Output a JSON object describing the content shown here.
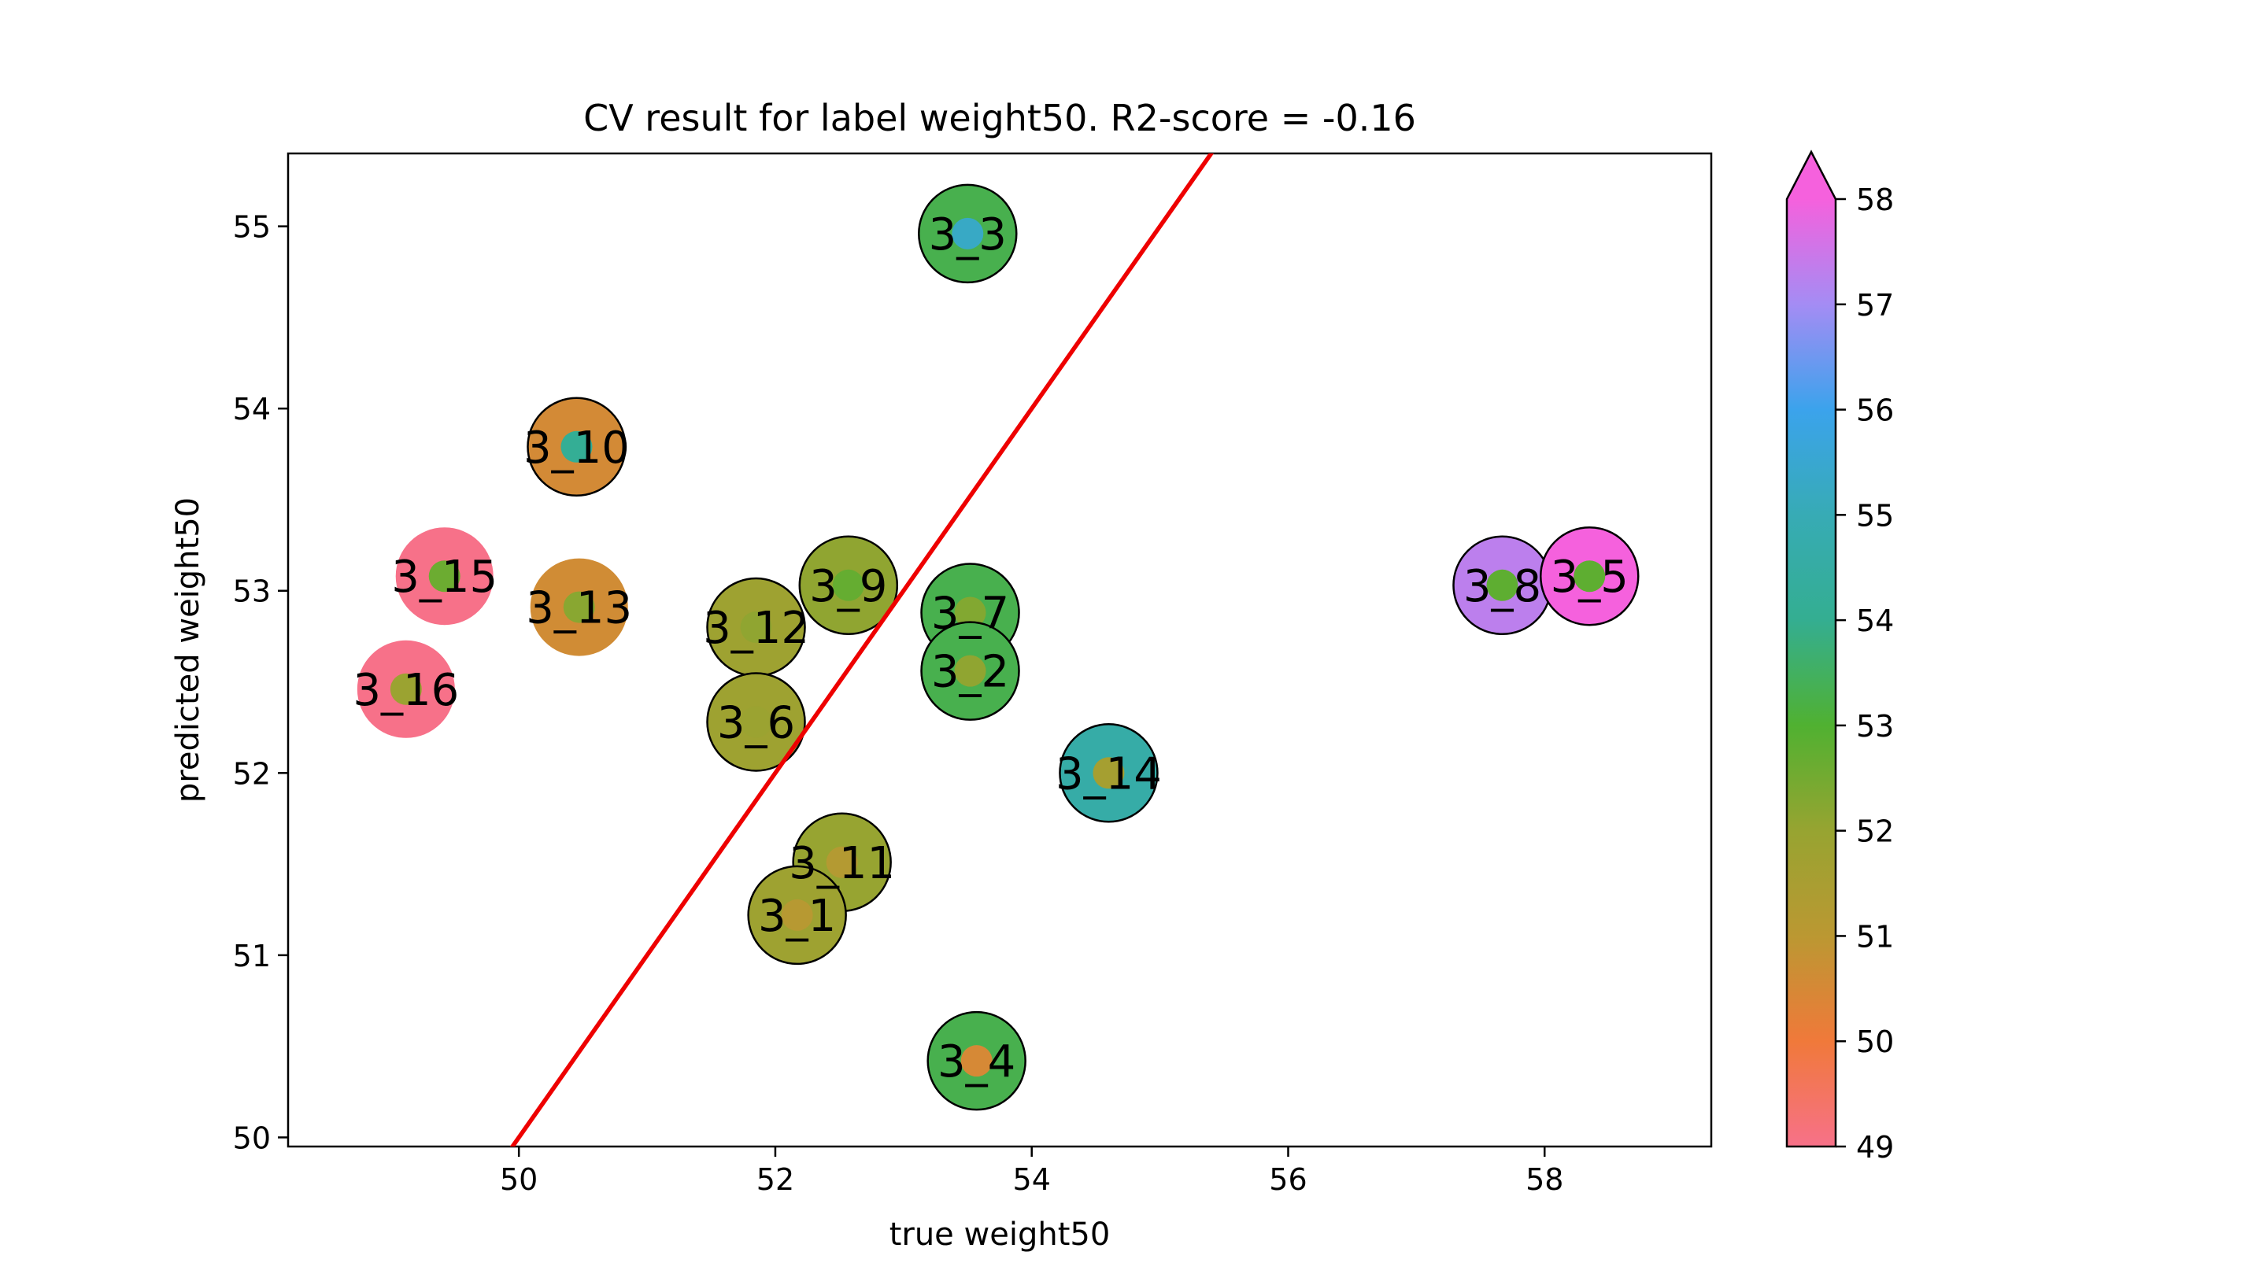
{
  "chart_data": {
    "type": "scatter",
    "title": "CV result for label weight50. R2-score = -0.16",
    "xlabel": "true weight50",
    "ylabel": "predicted weight50",
    "xlim": [
      48.2,
      59.3
    ],
    "ylim": [
      49.95,
      55.4
    ],
    "xticks": [
      50,
      52,
      54,
      56,
      58
    ],
    "yticks": [
      50,
      51,
      52,
      53,
      54,
      55
    ],
    "grid": false,
    "legend": "none",
    "identity_line": {
      "color": "#ee0000",
      "from": 49.9,
      "to": 55.45
    },
    "colorbar": {
      "min": 49,
      "max": 58,
      "ticks": [
        49,
        50,
        51,
        52,
        53,
        54,
        55,
        56,
        57,
        58
      ],
      "extend": "max",
      "colors": [
        "#f77189",
        "#f0793a",
        "#bb9832",
        "#97a431",
        "#50b131",
        "#34ae91",
        "#37abb5",
        "#3ba3ec",
        "#a48cf4",
        "#f561dd"
      ]
    },
    "points": [
      {
        "label": "3_3",
        "x": 53.5,
        "y": 54.96,
        "outer": 53.3,
        "inner": 55.3,
        "edge": true
      },
      {
        "label": "3_10",
        "x": 50.45,
        "y": 53.79,
        "outer": 50.55,
        "inner": 54.1,
        "edge": true
      },
      {
        "label": "3_15",
        "x": 49.42,
        "y": 53.08,
        "outer": 49.0,
        "inner": 52.6,
        "edge": false
      },
      {
        "label": "3_13",
        "x": 50.47,
        "y": 52.91,
        "outer": 50.6,
        "inner": 52.2,
        "edge": false
      },
      {
        "label": "3_16",
        "x": 49.12,
        "y": 52.46,
        "outer": 49.0,
        "inner": 51.9,
        "edge": false
      },
      {
        "label": "3_9",
        "x": 52.57,
        "y": 53.03,
        "outer": 52.1,
        "inner": 52.7,
        "edge": true
      },
      {
        "label": "3_12",
        "x": 51.85,
        "y": 52.8,
        "outer": 51.8,
        "inner": 52.1,
        "edge": true
      },
      {
        "label": "3_7",
        "x": 53.52,
        "y": 52.88,
        "outer": 53.3,
        "inner": 52.3,
        "edge": true
      },
      {
        "label": "3_2",
        "x": 53.52,
        "y": 52.56,
        "outer": 53.3,
        "inner": 52.1,
        "edge": true
      },
      {
        "label": "3_6",
        "x": 51.85,
        "y": 52.28,
        "outer": 51.8,
        "inner": 51.9,
        "edge": true
      },
      {
        "label": "3_14",
        "x": 54.6,
        "y": 52.0,
        "outer": 54.6,
        "inner": 51.6,
        "edge": true
      },
      {
        "label": "3_8",
        "x": 57.67,
        "y": 53.03,
        "outer": 57.3,
        "inner": 52.8,
        "edge": true
      },
      {
        "label": "3_5",
        "x": 58.35,
        "y": 53.08,
        "outer": 58.0,
        "inner": 52.8,
        "edge": true
      },
      {
        "label": "3_11",
        "x": 52.52,
        "y": 51.51,
        "outer": 52.0,
        "inner": 51.2,
        "edge": true
      },
      {
        "label": "3_1",
        "x": 52.17,
        "y": 51.22,
        "outer": 51.8,
        "inner": 51.1,
        "edge": true
      },
      {
        "label": "3_4",
        "x": 53.57,
        "y": 50.42,
        "outer": 53.3,
        "inner": 50.5,
        "edge": true
      }
    ]
  }
}
